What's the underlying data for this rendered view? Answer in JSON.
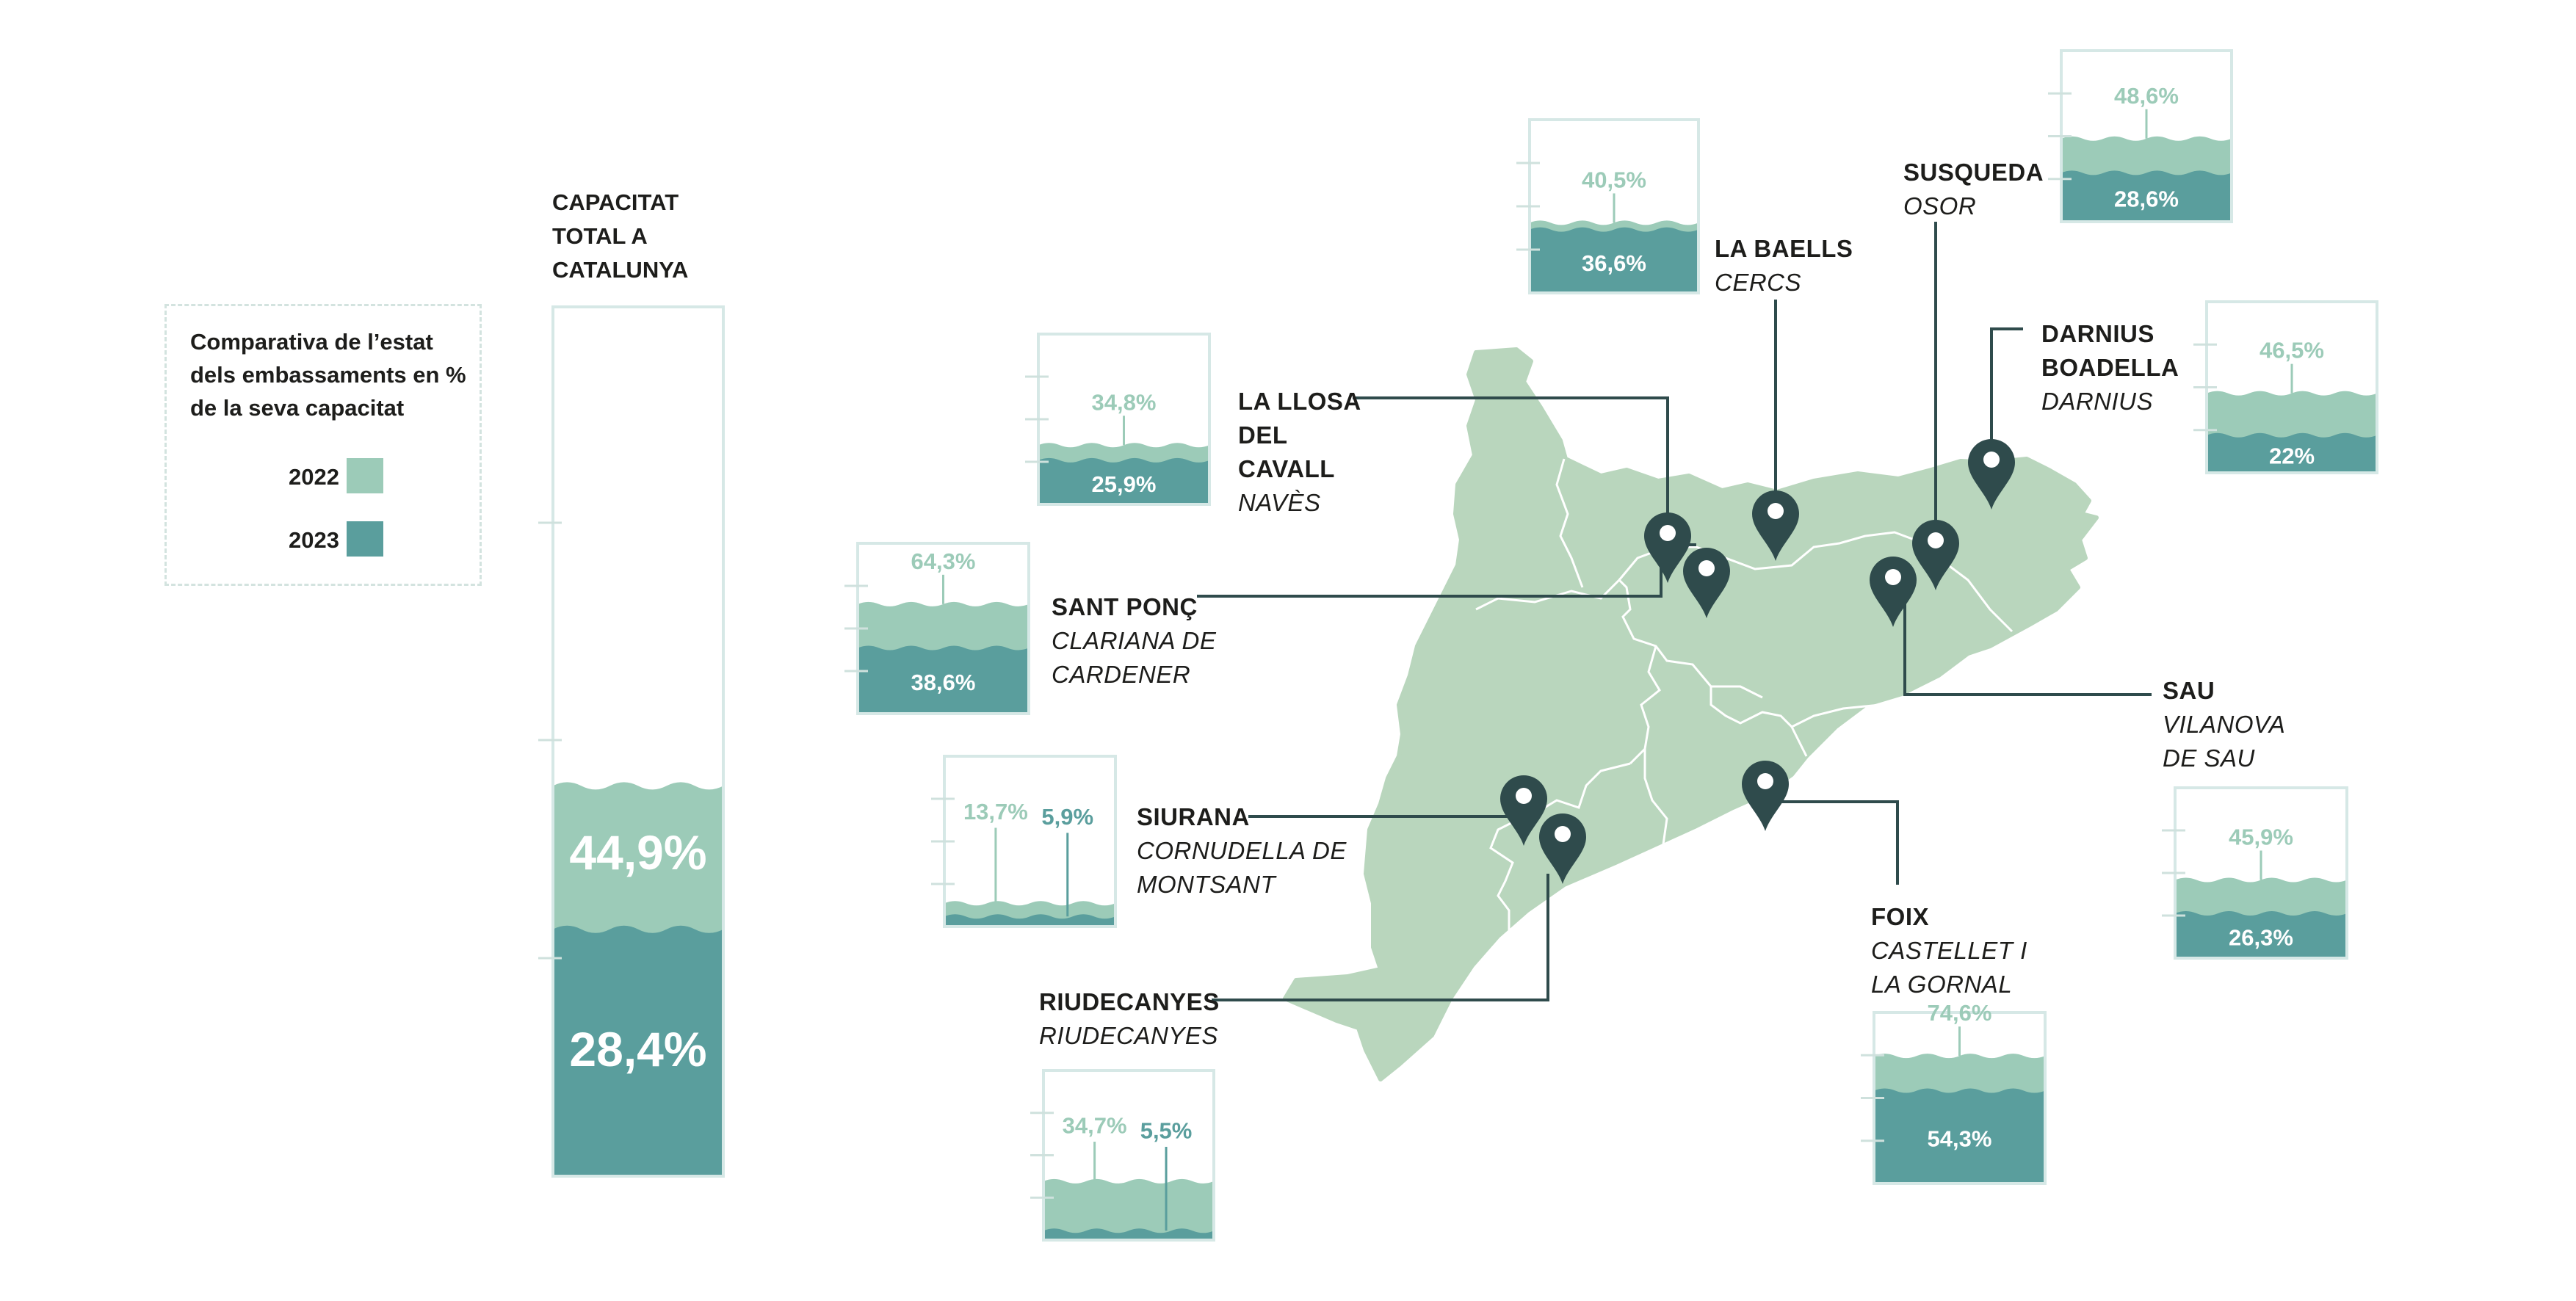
{
  "legend": {
    "title": "Comparativa de l’estat dels embassaments en % de la seva capacitat",
    "items": [
      {
        "year": "2022",
        "color": "#9ccbb8"
      },
      {
        "year": "2023",
        "color": "#5a9e9d"
      }
    ]
  },
  "total": {
    "title": "CAPACITAT TOTAL A CATALUNYA",
    "v2022": 44.9,
    "v2022_label": "44,9%",
    "v2023": 28.4,
    "v2023_label": "28,4%"
  },
  "colors": {
    "c2022": "#9ccbb8",
    "c2023": "#5a9e9d",
    "map": "#b9d6bd",
    "pin": "#2f4b4c",
    "frame": "#d6e8e6"
  },
  "reservoirs": [
    {
      "name": "LA BAELLS",
      "town": "CERCS",
      "v2022": 40.5,
      "l2022": "40,5%",
      "v2023": 36.6,
      "l2023": "36,6%"
    },
    {
      "name": "SUSQUEDA",
      "town": "OSOR",
      "v2022": 48.6,
      "l2022": "48,6%",
      "v2023": 28.6,
      "l2023": "28,6%"
    },
    {
      "name": "DARNIUS BOADELLA",
      "town": "DARNIUS",
      "v2022": 46.5,
      "l2022": "46,5%",
      "v2023": 22,
      "l2023": "22%"
    },
    {
      "name": "LA LLOSA DEL CAVALL",
      "town": "NAVÈS",
      "v2022": 34.8,
      "l2022": "34,8%",
      "v2023": 25.9,
      "l2023": "25,9%"
    },
    {
      "name": "SANT PONÇ",
      "town": "CLARIANA DE CARDENER",
      "v2022": 64.3,
      "l2022": "64,3%",
      "v2023": 38.6,
      "l2023": "38,6%"
    },
    {
      "name": "SIURANA",
      "town": "CORNUDELLA DE MONTSANT",
      "v2022": 13.7,
      "l2022": "13,7%",
      "v2023": 5.9,
      "l2023": "5,9%"
    },
    {
      "name": "RIUDECANYES",
      "town": "RIUDECANYES",
      "v2022": 34.7,
      "l2022": "34,7%",
      "v2023": 5.5,
      "l2023": "5,5%"
    },
    {
      "name": "SAU",
      "town": "VILANOVA DE SAU",
      "v2022": 45.9,
      "l2022": "45,9%",
      "v2023": 26.3,
      "l2023": "26,3%"
    },
    {
      "name": "FOIX",
      "town": "CASTELLET I LA GORNAL",
      "v2022": 74.6,
      "l2022": "74,6%",
      "v2023": 54.3,
      "l2023": "54,3%"
    }
  ]
}
